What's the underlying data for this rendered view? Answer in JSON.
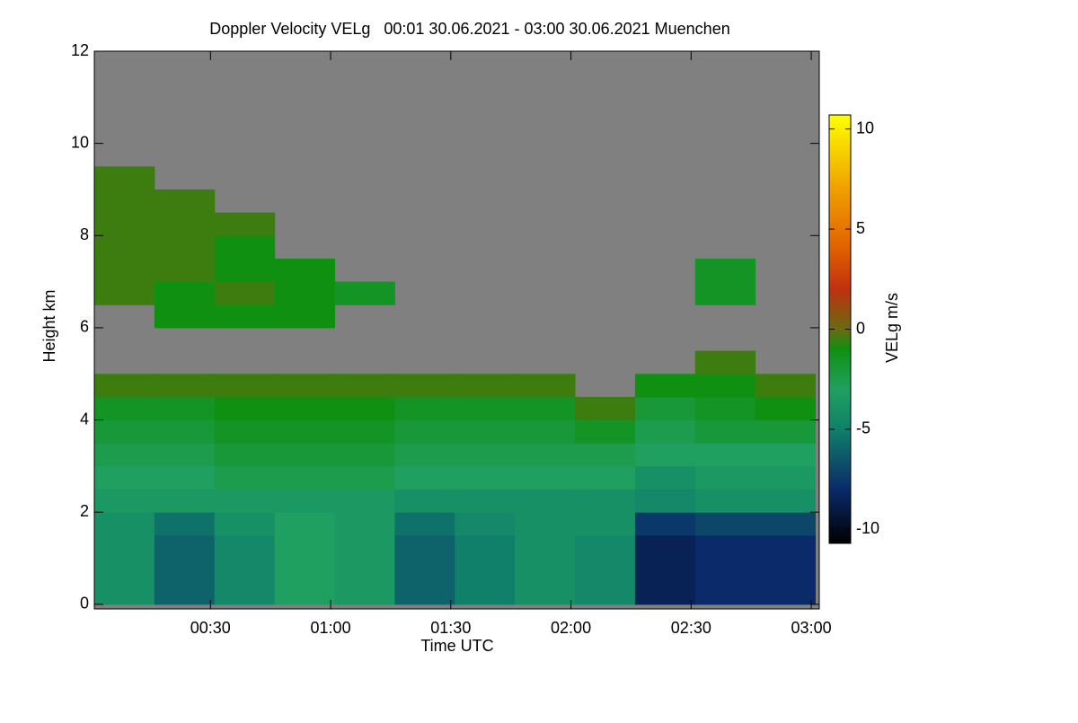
{
  "chart_data": {
    "type": "heatmap",
    "title": "Doppler Velocity VELg   00:01 30.06.2021 - 03:00 30.06.2021 Muenchen",
    "x_label": "Time UTC",
    "y_label": "Height km",
    "colorbar_label": "VELg m/s",
    "x": [
      1,
      16,
      31,
      46,
      61,
      76,
      91,
      106,
      121,
      136,
      151,
      166,
      181
    ],
    "y": [
      0,
      0.5,
      1,
      1.5,
      2,
      2.5,
      3,
      3.5,
      4,
      4.5,
      5,
      5.5,
      6,
      6.5,
      7,
      7.5,
      8,
      8.5,
      9,
      9.5
    ],
    "z": [
      [
        -4,
        -6,
        -4.5,
        -3,
        -3.5,
        -6,
        -5,
        -4,
        -4.5,
        -8.5,
        -8,
        -8
      ],
      [
        -4,
        -6,
        -4.5,
        -3,
        -3.5,
        -6,
        -5,
        -4,
        -4.5,
        -8.5,
        -8,
        -8
      ],
      [
        -4,
        -6,
        -4.5,
        -3,
        -3.5,
        -6,
        -5,
        -4,
        -4.5,
        -8.5,
        -8,
        -8
      ],
      [
        -4,
        -5.5,
        -4,
        -3,
        -3.5,
        -5.5,
        -4.5,
        -4,
        -4,
        -7.5,
        -7,
        -7
      ],
      [
        -3.5,
        -3.5,
        -3.5,
        -3.5,
        -3.5,
        -4,
        -4,
        -4,
        -4,
        -4.5,
        -4,
        -4
      ],
      [
        -3,
        -3,
        -2.5,
        -2.5,
        -2.5,
        -3,
        -3,
        -3,
        -3,
        -4,
        -3.5,
        -3.5
      ],
      [
        -2.5,
        -2.5,
        -2,
        -2,
        -2,
        -2.5,
        -2.5,
        -2.5,
        -2.5,
        -3,
        -3,
        -3
      ],
      [
        -2,
        -2,
        -1.5,
        -1.5,
        -1.5,
        -2,
        -2,
        -2,
        -1.5,
        -2.5,
        -2,
        -2
      ],
      [
        -1.5,
        -1.5,
        -1,
        -1,
        -1,
        -1.5,
        -1.5,
        -1.5,
        -0.5,
        -2,
        -1.5,
        -1
      ],
      [
        -0.5,
        -0.5,
        -0.5,
        -0.5,
        -0.5,
        -0.5,
        -0.5,
        -0.5,
        null,
        -1,
        -1,
        -0.5
      ],
      [
        null,
        null,
        null,
        null,
        null,
        null,
        null,
        null,
        null,
        null,
        -0.5,
        null
      ],
      [
        null,
        null,
        null,
        null,
        null,
        null,
        null,
        null,
        null,
        null,
        null,
        null
      ],
      [
        null,
        -1,
        -1,
        -1,
        null,
        null,
        null,
        null,
        null,
        null,
        null,
        null
      ],
      [
        -0.5,
        -1,
        -0.5,
        -1,
        -1.5,
        null,
        null,
        null,
        null,
        null,
        -1.5,
        null
      ],
      [
        -0.5,
        -0.5,
        -1,
        -1,
        null,
        null,
        null,
        null,
        null,
        null,
        -1.5,
        null
      ],
      [
        -0.5,
        -0.5,
        -1,
        null,
        null,
        null,
        null,
        null,
        null,
        null,
        null,
        null
      ],
      [
        -0.5,
        -0.5,
        -0.5,
        null,
        null,
        null,
        null,
        null,
        null,
        null,
        null,
        null
      ],
      [
        -0.5,
        -0.5,
        null,
        null,
        null,
        null,
        null,
        null,
        null,
        null,
        null,
        null
      ],
      [
        -0.5,
        null,
        null,
        null,
        null,
        null,
        null,
        null,
        null,
        null,
        null,
        null
      ]
    ],
    "xlim": [
      1,
      182
    ],
    "ylim": [
      -0.1,
      12
    ],
    "zlim": [
      -10.7,
      10.7
    ],
    "xticks": [
      {
        "value": 30,
        "label": "00:30"
      },
      {
        "value": 60,
        "label": "01:00"
      },
      {
        "value": 90,
        "label": "01:30"
      },
      {
        "value": 120,
        "label": "02:00"
      },
      {
        "value": 150,
        "label": "02:30"
      },
      {
        "value": 180,
        "label": "03:00"
      }
    ],
    "yticks": [
      0,
      2,
      4,
      6,
      8,
      10,
      12
    ],
    "zticks": [
      -10,
      -5,
      0,
      5,
      10
    ],
    "missing_color": "#808080",
    "colorscale": [
      [
        -10.7,
        "#000000"
      ],
      [
        -8,
        "#0a2a6a"
      ],
      [
        -5,
        "#10806a"
      ],
      [
        -3,
        "#20a060"
      ],
      [
        -1,
        "#109010"
      ],
      [
        0,
        "#6a6a10"
      ],
      [
        2,
        "#c03010"
      ],
      [
        4,
        "#e06000"
      ],
      [
        7,
        "#f0a000"
      ],
      [
        10.7,
        "#ffff00"
      ]
    ]
  }
}
